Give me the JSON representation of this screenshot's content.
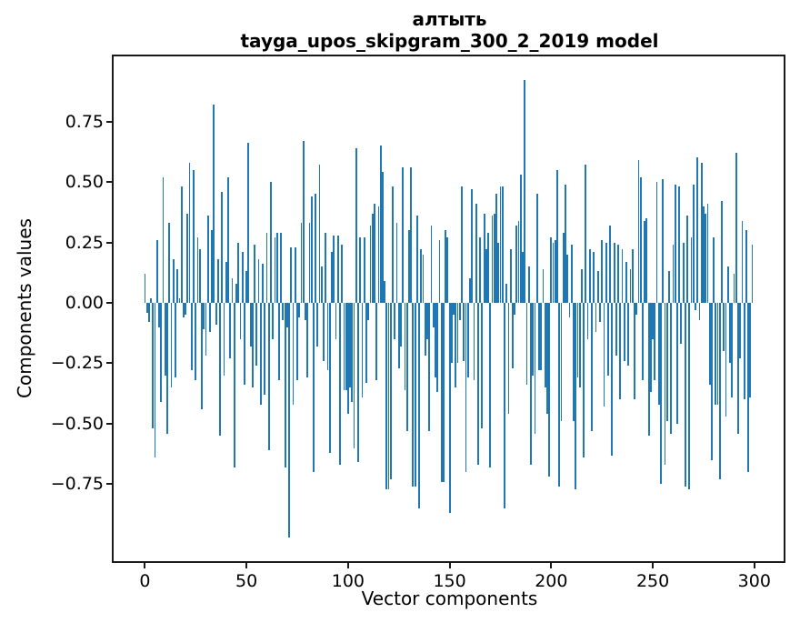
{
  "figure": {
    "title_line1": "алтыть",
    "title_line2": "tayga_upos_skipgram_300_2_2019 model",
    "xlabel": "Vector components",
    "ylabel": "Components values",
    "background_color": "#ffffff",
    "spine_color": "#1a1a1a"
  },
  "chart_data": {
    "type": "bar",
    "title": "алтыть",
    "subtitle": "tayga_upos_skipgram_300_2_2019 model",
    "xlabel": "Vector components",
    "ylabel": "Components values",
    "bar_color": "#1f77b4",
    "grid": false,
    "legend_position": "none",
    "x_start": 0,
    "n_components": 300,
    "xlim": [
      -15.4,
      314.4
    ],
    "ylim": [
      -1.068,
      1.019
    ],
    "xticks": [
      0,
      50,
      100,
      150,
      200,
      250,
      300
    ],
    "xtick_labels": [
      "0",
      "50",
      "100",
      "150",
      "200",
      "250",
      "300"
    ],
    "yticks": [
      0.75,
      0.5,
      0.25,
      0,
      -0.25,
      -0.5,
      -0.75
    ],
    "ytick_labels": [
      "0.75",
      "0.50",
      "0.25",
      "0.00",
      "−0.25",
      "−0.50",
      "−0.75"
    ],
    "values": [
      0.12,
      -0.04,
      -0.08,
      0.02,
      -0.52,
      -0.64,
      0.26,
      -0.1,
      -0.41,
      0.52,
      -0.3,
      -0.54,
      0.33,
      -0.35,
      0.18,
      -0.31,
      0.14,
      0.02,
      0.48,
      -0.06,
      -0.05,
      0.37,
      0.58,
      -0.28,
      0.55,
      -0.32,
      0.27,
      0.22,
      -0.44,
      -0.11,
      -0.22,
      0.36,
      -0.12,
      0.3,
      0.82,
      -0.09,
      0.18,
      -0.55,
      0.46,
      -0.3,
      0.17,
      0.52,
      -0.23,
      0.1,
      -0.68,
      0.08,
      0.25,
      -0.15,
      0.21,
      -0.34,
      0.13,
      0.66,
      -0.18,
      -0.35,
      0.24,
      -0.26,
      0.18,
      -0.42,
      0.16,
      -0.38,
      0.29,
      -0.61,
      0.5,
      -0.15,
      0.27,
      0.29,
      -0.32,
      0.29,
      -0.07,
      -0.68,
      -0.1,
      -0.97,
      0.23,
      -0.42,
      0.23,
      -0.32,
      -0.06,
      0.33,
      0.67,
      -0.07,
      -0.31,
      0.33,
      0.44,
      -0.7,
      0.45,
      -0.18,
      0.57,
      0.15,
      -0.24,
      0.29,
      -0.28,
      -0.62,
      0.21,
      0.28,
      -0.15,
      0.28,
      -0.67,
      0.24,
      -0.36,
      -0.36,
      -0.46,
      -0.35,
      -0.41,
      -0.6,
      0.64,
      -0.66,
      0.27,
      -0.39,
      0.27,
      -0.33,
      -0.07,
      0.32,
      0.37,
      0.41,
      -0.32,
      0.4,
      0.65,
      0.54,
      0.09,
      -0.77,
      -0.77,
      -0.73,
      0.48,
      -0.15,
      0.33,
      -0.27,
      -0.18,
      0.56,
      -0.36,
      -0.53,
      0.3,
      0.56,
      -0.76,
      -0.76,
      0.36,
      -0.85,
      0.22,
      0.2,
      -0.22,
      -0.15,
      -0.53,
      0.32,
      -0.1,
      -0.31,
      -0.37,
      0.26,
      -0.74,
      -0.74,
      0.3,
      0.27,
      -0.87,
      -0.25,
      -0.05,
      -0.35,
      -0.25,
      -0.07,
      0.48,
      -0.24,
      -0.7,
      -0.31,
      0.1,
      0.47,
      -0.32,
      0.41,
      -0.67,
      0.27,
      -0.52,
      0.37,
      0.22,
      0.29,
      -0.68,
      0.36,
      0.37,
      0.45,
      0.25,
      0.48,
      0.48,
      -0.85,
      0.08,
      -0.46,
      0.22,
      -0.27,
      -0.05,
      0.32,
      0.34,
      0.53,
      0.21,
      0.92,
      -0.34,
      0.15,
      -0.67,
      -0.3,
      -0.54,
      0.45,
      -0.28,
      -0.28,
      0.14,
      -0.35,
      -0.46,
      -0.72,
      0.27,
      0.25,
      0.26,
      0.55,
      -0.76,
      -0.49,
      0.29,
      0.49,
      0.2,
      -0.06,
      0.24,
      -0.49,
      -0.77,
      -0.31,
      -0.35,
      0.14,
      -0.64,
      0.57,
      -0.15,
      0.22,
      -0.53,
      0.21,
      -0.12,
      0.13,
      -0.08,
      0.26,
      -0.43,
      0.25,
      -0.3,
      0.32,
      -0.63,
      0.25,
      -0.22,
      0.24,
      -0.4,
      0.22,
      -0.24,
      0.17,
      -0.26,
      0.14,
      0.22,
      -0.4,
      -0.05,
      0.59,
      0.52,
      -0.32,
      0.34,
      0.35,
      -0.55,
      -0.37,
      -0.15,
      -0.32,
      0.5,
      -0.42,
      -0.75,
      0.51,
      -0.67,
      -0.49,
      0.13,
      -0.54,
      0.24,
      0.49,
      -0.5,
      0.48,
      -0.17,
      0.25,
      -0.76,
      0.36,
      -0.77,
      0.27,
      0.49,
      -0.03,
      0.6,
      -0.07,
      0.58,
      0.4,
      0.37,
      0.41,
      -0.34,
      -0.65,
      0.27,
      -0.42,
      -0.42,
      -0.73,
      0.42,
      -0.2,
      -0.47,
      0.15,
      -0.25,
      -0.39,
      0.12,
      0.62,
      -0.54,
      -0.23,
      0.34,
      -0.4,
      0.3,
      -0.7,
      -0.39,
      0.24
    ]
  }
}
